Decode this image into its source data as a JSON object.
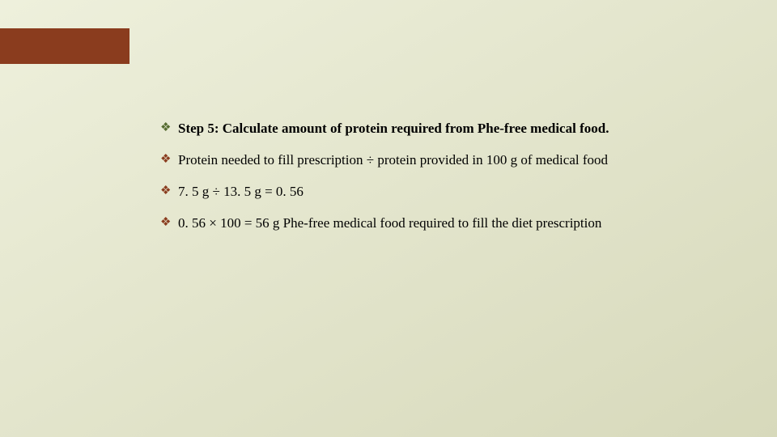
{
  "layout": {
    "background_gradient": {
      "from": "#eef0dc",
      "to": "#d7d9bb",
      "angle_deg": 150
    },
    "accent_bar": {
      "width": 160,
      "height": 44,
      "color": "#8a3c1e"
    }
  },
  "bullets": {
    "diamond": {
      "glyph": "❖",
      "color": "#556b2f",
      "fontsize": 15
    },
    "clover": {
      "glyph": "❖",
      "color": "#8a3c1e",
      "fontsize": 15
    }
  },
  "text": {
    "line1": "Step 5: Calculate amount of protein required from Phe-free medical food.",
    "line2": "Protein needed to fill prescription ÷ protein provided in 100 g of medical food",
    "line3": "7. 5 g ÷ 13. 5 g = 0. 56",
    "line4": "0. 56 × 100 = 56 g Phe-free medical food required to fill the diet prescription"
  },
  "typography": {
    "body_fontsize": 17,
    "body_color": "#000000",
    "font_family": "Times New Roman"
  }
}
